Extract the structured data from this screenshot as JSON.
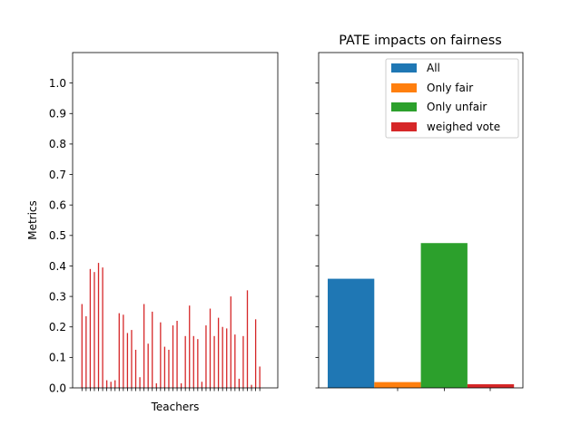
{
  "chart_data": [
    {
      "type": "bar",
      "title": "",
      "xlabel": "Teachers",
      "ylabel": "Metrics",
      "ylim": [
        0,
        1.1
      ],
      "yticks": [
        "0.0",
        "0.1",
        "0.2",
        "0.3",
        "0.4",
        "0.5",
        "0.6",
        "0.7",
        "0.8",
        "0.9",
        "1.0"
      ],
      "grid": false,
      "bar_color": "#d62728",
      "values": [
        0.275,
        0.235,
        0.39,
        0.38,
        0.41,
        0.395,
        0.025,
        0.02,
        0.025,
        0.245,
        0.24,
        0.18,
        0.19,
        0.125,
        0.035,
        0.275,
        0.145,
        0.25,
        0.015,
        0.215,
        0.135,
        0.125,
        0.205,
        0.22,
        0.015,
        0.17,
        0.27,
        0.17,
        0.16,
        0.02,
        0.205,
        0.26,
        0.17,
        0.23,
        0.2,
        0.195,
        0.3,
        0.175,
        0.03,
        0.17,
        0.32,
        0.01,
        0.225,
        0.07
      ]
    },
    {
      "type": "bar",
      "title": "PATE impacts on fairness",
      "xlabel": "",
      "ylabel": "",
      "ylim": [
        0,
        1.1
      ],
      "grid": false,
      "legend_position": "top-right",
      "series": [
        {
          "name": "All",
          "color": "#1f77b4",
          "value": 0.358
        },
        {
          "name": "Only fair",
          "color": "#ff7f0e",
          "value": 0.019
        },
        {
          "name": "Only unfair",
          "color": "#2ca02c",
          "value": 0.475
        },
        {
          "name": "weighed vote",
          "color": "#d62728",
          "value": 0.012
        }
      ]
    }
  ]
}
